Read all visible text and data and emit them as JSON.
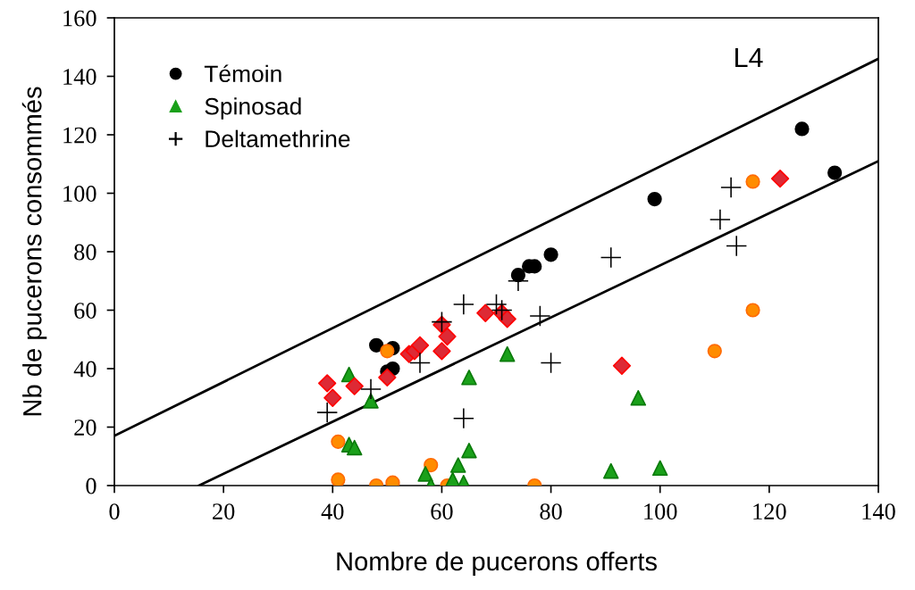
{
  "chart_data": {
    "type": "scatter",
    "xlabel": "Nombre de pucerons offerts",
    "ylabel": "Nb de pucerons consommés",
    "annotations": [
      "L4"
    ],
    "xlim": [
      0,
      140
    ],
    "ylim": [
      0,
      160
    ],
    "xticks": [
      0,
      20,
      40,
      60,
      80,
      100,
      120,
      140
    ],
    "yticks": [
      0,
      20,
      40,
      60,
      80,
      100,
      120,
      140,
      160
    ],
    "grid": false,
    "legend": "top left",
    "series": [
      {
        "name": "Témoin",
        "color": "#000000",
        "marker": "circle",
        "x": [
          48,
          51,
          50,
          51,
          74,
          76,
          77,
          80,
          99,
          126,
          132
        ],
        "values": [
          48,
          47,
          39,
          40,
          72,
          75,
          75,
          79,
          98,
          122,
          107
        ]
      },
      {
        "color": "#ff8c00",
        "marker": "circle",
        "x": [
          50,
          41,
          41,
          48,
          51,
          58,
          61,
          77,
          110,
          117,
          117
        ],
        "values": [
          46,
          15,
          2,
          0,
          1,
          7,
          0,
          0,
          46,
          60,
          104
        ]
      },
      {
        "name": "Spinosad",
        "color": "#1aa01a",
        "marker": "triangle",
        "x": [
          43,
          43,
          44,
          47,
          57,
          58,
          62,
          63,
          64,
          65,
          65,
          72,
          91,
          96,
          100
        ],
        "values": [
          38,
          14,
          13,
          29,
          4,
          0,
          2,
          7,
          1,
          12,
          37,
          45,
          5,
          30,
          6
        ]
      },
      {
        "color": "#dd2a35",
        "marker": "diamond",
        "x": [
          39,
          40,
          44,
          50,
          54,
          55,
          56,
          60,
          60,
          61,
          68,
          71,
          72,
          93,
          122
        ],
        "values": [
          35,
          30,
          34,
          37,
          45,
          46,
          48,
          46,
          55,
          51,
          59,
          59,
          57,
          41,
          105
        ]
      },
      {
        "name": "Deltamethrine",
        "color": "#000000",
        "marker": "cross",
        "x": [
          39,
          47,
          56,
          60,
          64,
          64,
          70,
          71,
          74,
          78,
          80,
          91,
          111,
          113,
          114
        ],
        "values": [
          25,
          33,
          42,
          56,
          62,
          23,
          62,
          60,
          70,
          58,
          42,
          78,
          91,
          102,
          82
        ]
      },
      {
        "type": "line",
        "color": "#000000",
        "marker": "none",
        "line_style": "solid",
        "x": [
          0,
          140
        ],
        "values": [
          17,
          146
        ]
      },
      {
        "type": "line",
        "color": "#000000",
        "marker": "none",
        "line_style": "solid",
        "x": [
          15.5,
          140
        ],
        "values": [
          0,
          111
        ]
      }
    ]
  }
}
